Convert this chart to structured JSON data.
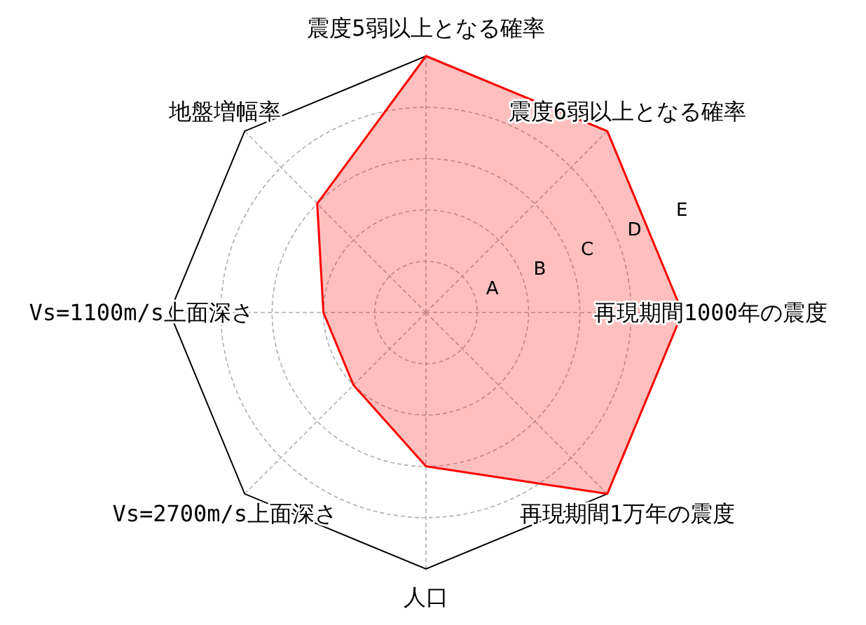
{
  "chart_data": {
    "type": "radar",
    "categories": [
      "震度5弱以上となる確率",
      "震度6弱以上となる確率",
      "再現期間1000年の震度",
      "再現期間1万年の震度",
      "人口",
      "Vs=2700m/s上面深さ",
      "Vs=1100m/s上面深さ",
      "地盤増幅率"
    ],
    "series": [
      {
        "color": "#ff0000",
        "values": [
          5,
          5,
          5,
          5,
          3,
          2,
          2,
          3
        ]
      }
    ],
    "ylim": [
      0,
      5
    ],
    "yticks": [
      {
        "value": 1,
        "label": "A"
      },
      {
        "value": 2,
        "label": "B"
      },
      {
        "value": 3,
        "label": "C"
      },
      {
        "value": 4,
        "label": "D"
      },
      {
        "value": 5,
        "label": "E"
      }
    ],
    "grid": true
  }
}
